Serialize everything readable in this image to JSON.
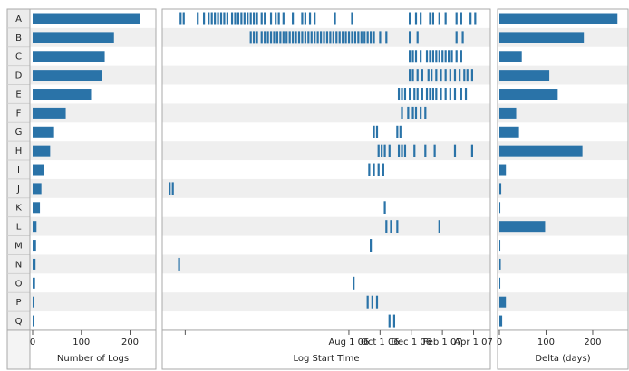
{
  "chart_data": [
    {
      "type": "bar",
      "orientation": "horizontal",
      "categories": [
        "A",
        "B",
        "C",
        "D",
        "E",
        "F",
        "G",
        "H",
        "I",
        "J",
        "K",
        "L",
        "M",
        "N",
        "O",
        "P",
        "Q"
      ],
      "values": [
        220,
        167,
        148,
        142,
        120,
        68,
        44,
        36,
        24,
        18,
        15,
        8,
        7,
        6,
        5,
        3,
        2
      ],
      "xlabel": "Number of Logs",
      "xticks": [
        0,
        100,
        200
      ],
      "xlim": [
        0,
        240
      ]
    },
    {
      "type": "event_timeline",
      "categories": [
        "A",
        "B",
        "C",
        "D",
        "E",
        "F",
        "G",
        "H",
        "I",
        "J",
        "K",
        "L",
        "M",
        "N",
        "O",
        "P",
        "Q"
      ],
      "xlabel": "Log Start Time",
      "xlim": [
        -4.8,
        15.9
      ],
      "x_unit": "months since Jan 1 06",
      "tick_positions": [
        -3.5,
        7,
        9,
        11,
        13,
        15
      ],
      "tick_labels": [
        "",
        "Aug 1 06",
        "Oct 1 06",
        "Dec 1 06",
        "Feb 1 07",
        "Apr 1 07"
      ],
      "events": [
        [
          -3.8,
          -3.6,
          -2.7,
          -2.3,
          -2.0,
          -1.8,
          -1.6,
          -1.4,
          -1.2,
          -1.0,
          -0.8,
          -0.5,
          -0.3,
          -0.1,
          0.1,
          0.3,
          0.5,
          0.7,
          0.9,
          1.1,
          1.4,
          1.6,
          2.0,
          2.3,
          2.5,
          2.8,
          3.4,
          4.0,
          4.2,
          4.5,
          4.8,
          6.1,
          7.2,
          10.9,
          11.3,
          11.6,
          12.2,
          12.4,
          12.8,
          13.2,
          13.9,
          14.2,
          14.8,
          15.1
        ],
        [
          0.7,
          0.9,
          1.1,
          1.4,
          1.6,
          1.8,
          2.0,
          2.2,
          2.4,
          2.6,
          2.8,
          3.0,
          3.2,
          3.4,
          3.6,
          3.8,
          4.0,
          4.2,
          4.4,
          4.6,
          4.8,
          5.0,
          5.2,
          5.4,
          5.6,
          5.8,
          6.0,
          6.2,
          6.4,
          6.6,
          6.8,
          7.0,
          7.2,
          7.4,
          7.6,
          7.8,
          8.0,
          8.2,
          8.4,
          8.6,
          9.0,
          9.4,
          10.9,
          11.4,
          13.9,
          14.3
        ],
        [
          10.9,
          11.1,
          11.3,
          11.6,
          12.0,
          12.2,
          12.4,
          12.6,
          12.8,
          13.0,
          13.2,
          13.4,
          13.6,
          13.9,
          14.2
        ],
        [
          10.9,
          11.1,
          11.4,
          11.7,
          12.1,
          12.3,
          12.6,
          12.9,
          13.2,
          13.5,
          13.8,
          14.1,
          14.4,
          14.6,
          14.9
        ],
        [
          10.2,
          10.4,
          10.6,
          10.9,
          11.2,
          11.4,
          11.7,
          12.0,
          12.2,
          12.4,
          12.6,
          12.9,
          13.2,
          13.5,
          13.8,
          14.2,
          14.5
        ],
        [
          10.4,
          10.8,
          11.1,
          11.3,
          11.6,
          11.9
        ],
        [
          8.6,
          8.8,
          10.1,
          10.3
        ],
        [
          8.9,
          9.1,
          9.3,
          9.6,
          10.2,
          10.4,
          10.6,
          11.2,
          11.9,
          12.5,
          13.8,
          14.9
        ],
        [
          8.3,
          8.6,
          8.9,
          9.2
        ],
        [
          -4.5,
          -4.3
        ],
        [
          9.3
        ],
        [
          9.4,
          9.7,
          10.1,
          12.8
        ],
        [
          8.4
        ],
        [
          -3.9
        ],
        [
          7.3
        ],
        [
          8.2,
          8.5,
          8.8
        ],
        [
          9.6,
          9.9
        ]
      ]
    },
    {
      "type": "bar",
      "orientation": "horizontal",
      "categories": [
        "A",
        "B",
        "C",
        "D",
        "E",
        "F",
        "G",
        "H",
        "I",
        "J",
        "K",
        "L",
        "M",
        "N",
        "O",
        "P",
        "Q"
      ],
      "values": [
        253,
        181,
        48,
        107,
        125,
        36,
        42,
        178,
        14,
        4,
        2,
        98,
        2,
        3,
        2,
        14,
        6
      ],
      "xlabel": "Delta (days)",
      "xticks": [
        0,
        100,
        200
      ],
      "xlim": [
        0,
        270
      ]
    }
  ]
}
